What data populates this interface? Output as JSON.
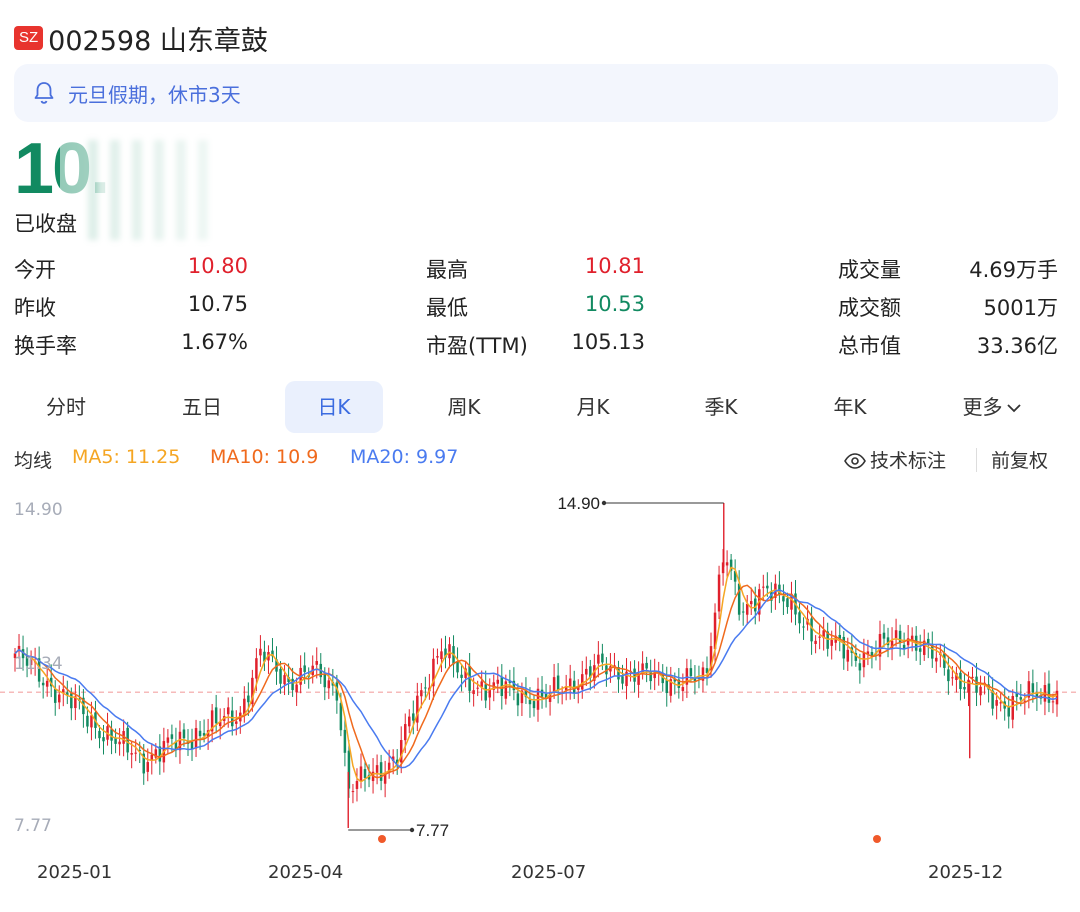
{
  "header": {
    "exchange": "SZ",
    "code_name": "002598 山东章鼓"
  },
  "notice": {
    "text": "元旦假期，休市3天",
    "icon": "bell-icon"
  },
  "quote": {
    "price": "10.",
    "status": "已收盘"
  },
  "stats": [
    {
      "label": "今开",
      "value": "10.80",
      "dir": "up"
    },
    {
      "label": "最高",
      "value": "10.81",
      "dir": "up"
    },
    {
      "label": "成交量",
      "value": "4.69万手",
      "dir": ""
    },
    {
      "label": "昨收",
      "value": "10.75",
      "dir": ""
    },
    {
      "label": "最低",
      "value": "10.53",
      "dir": "down"
    },
    {
      "label": "成交额",
      "value": "5001万",
      "dir": ""
    },
    {
      "label": "换手率",
      "value": "1.67%",
      "dir": ""
    },
    {
      "label": "市盈(TTM)",
      "value": "105.13",
      "dir": ""
    },
    {
      "label": "总市值",
      "value": "33.36亿",
      "dir": ""
    }
  ],
  "tabs": [
    "分时",
    "五日",
    "日K",
    "周K",
    "月K",
    "季K",
    "年K",
    "更多"
  ],
  "active_tab": "日K",
  "ma": {
    "label": "均线",
    "ma5": "MA5: 11.25",
    "ma10": "MA10: 10.9",
    "ma20": "MA20: 9.97",
    "annot": "技术标注",
    "adjust": "前复权"
  },
  "colors": {
    "up": "#e0202c",
    "down": "#128a61",
    "ma5": "#f5a623",
    "ma10": "#f06a1d",
    "ma20": "#4a7bf0",
    "accent": "#3b6be0"
  },
  "chart_data": {
    "type": "candlestick",
    "ylim": [
      7.77,
      14.9
    ],
    "y_ticks": [
      "14.90",
      "11.34",
      "7.77"
    ],
    "x_ticks": [
      "2025-01",
      "2025-04",
      "2025-07",
      "2025-12"
    ],
    "max_marker": "14.90",
    "min_marker": "7.77",
    "ref_price": 10.75,
    "key_points": [
      {
        "date": "2024-12-02",
        "close": 11.6
      },
      {
        "date": "2025-01-10",
        "close": 9.6
      },
      {
        "date": "2025-01-20",
        "close": 9.3
      },
      {
        "date": "2025-02-25",
        "close": 10.3
      },
      {
        "date": "2025-03-05",
        "close": 11.6
      },
      {
        "date": "2025-03-15",
        "close": 11.0
      },
      {
        "date": "2025-03-25",
        "close": 11.2
      },
      {
        "date": "2025-04-03",
        "close": 10.8
      },
      {
        "date": "2025-04-07",
        "close": 8.6
      },
      {
        "date": "2025-04-25",
        "close": 9.3
      },
      {
        "date": "2025-05-12",
        "close": 11.8
      },
      {
        "date": "2025-05-20",
        "close": 11.0
      },
      {
        "date": "2025-06-20",
        "close": 10.6
      },
      {
        "date": "2025-07-10",
        "close": 11.3
      },
      {
        "date": "2025-08-08",
        "close": 11.0
      },
      {
        "date": "2025-08-20",
        "close": 11.0
      },
      {
        "date": "2025-08-27",
        "close": 14.0
      },
      {
        "date": "2025-09-03",
        "close": 12.3
      },
      {
        "date": "2025-09-12",
        "close": 13.2
      },
      {
        "date": "2025-09-25",
        "close": 12.3
      },
      {
        "date": "2025-10-15",
        "close": 11.5
      },
      {
        "date": "2025-11-05",
        "close": 12.0
      },
      {
        "date": "2025-11-20",
        "close": 11.2
      },
      {
        "date": "2025-12-10",
        "close": 10.5
      },
      {
        "date": "2025-12-31",
        "close": 10.78
      }
    ],
    "ma20_points": [
      10.5,
      10.2,
      9.9,
      9.7,
      9.95,
      10.3,
      10.9,
      11.1,
      11.1,
      10.9,
      9.9,
      9.9,
      10.3,
      10.9,
      10.9,
      11.1,
      11.15,
      11.2,
      12.4,
      12.9,
      12.7,
      12.2,
      11.7,
      11.6,
      10.9
    ]
  }
}
